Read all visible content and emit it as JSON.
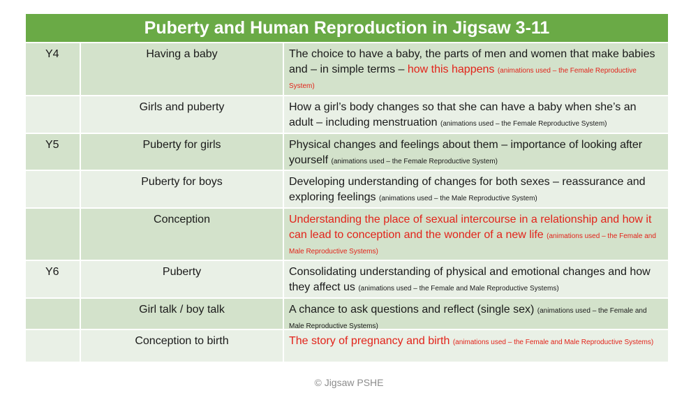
{
  "title": "Puberty and Human Reproduction in Jigsaw 3-11",
  "rows": [
    {
      "year": "Y4",
      "topic": "Having a baby",
      "desc": "The choice to have a baby, the parts of men and women that make babies and – in simple terms –",
      "red": "how this happens",
      "note": "(animations used – the Female Reproductive System)"
    },
    {
      "year": "",
      "topic": "Girls and puberty",
      "desc": "How a girl’s body changes so that she can have a baby when she’s an adult – including menstruation",
      "red": "",
      "note": "(animations used – the Female Reproductive System)"
    },
    {
      "year": "Y5",
      "topic": "Puberty for girls",
      "desc": "Physical changes and feelings about them – importance of looking after yourself",
      "red": "",
      "note": "(animations used – the Female Reproductive System)"
    },
    {
      "year": "",
      "topic": "Puberty for boys",
      "desc": "Developing understanding of changes for both sexes – reassurance and exploring feelings",
      "red": "",
      "note": "(animations used – the Male Reproductive System)"
    },
    {
      "year": "",
      "topic": "Conception",
      "desc": "",
      "red": "Understanding the place of sexual intercourse in a relationship and how it can lead to conception and the wonder of a new life",
      "note": "(animations used – the Female and Male Reproductive Systems)"
    },
    {
      "year": "Y6",
      "topic": "Puberty",
      "desc": "Consolidating understanding of physical and emotional changes and how they affect us",
      "red": "",
      "note": "(animations used – the Female and Male Reproductive Systems)"
    },
    {
      "year": "",
      "topic": "Girl talk / boy talk",
      "desc": "A chance to ask questions and reflect (single sex)",
      "red": "",
      "note": "(animations used – the Female and Male Reproductive Systems)"
    },
    {
      "year": "",
      "topic": "Conception to birth",
      "desc": "",
      "red": "The story of pregnancy and birth",
      "note": "(animations used – the Female and Male Reproductive Systems)"
    }
  ],
  "footer": "© Jigsaw PSHE",
  "colors": {
    "header": "#6aaa46",
    "row_dark": "#d3e2cb",
    "row_light": "#e9f0e6",
    "highlight": "#e2231a"
  }
}
